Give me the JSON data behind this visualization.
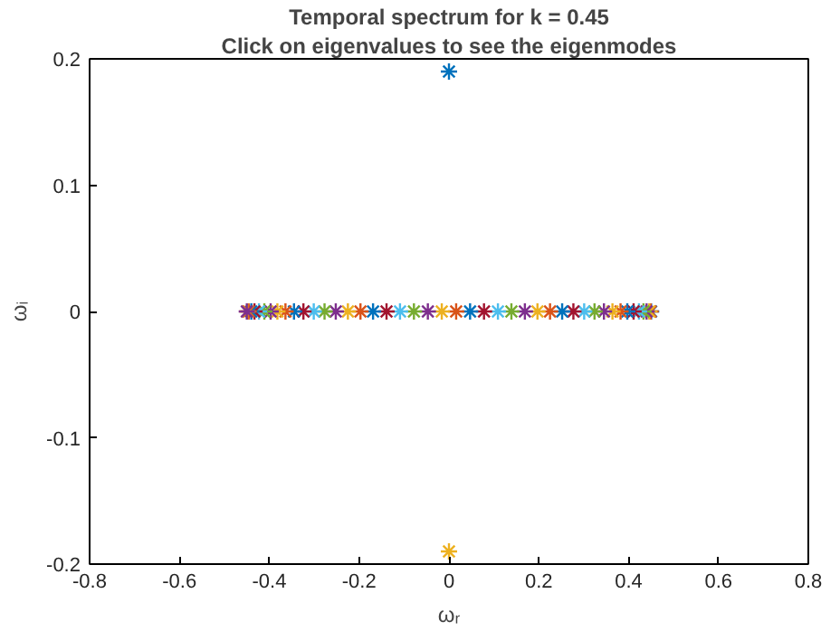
{
  "chart_data": {
    "type": "scatter",
    "title": "Temporal spectrum for k = 0.45",
    "subtitle": "Click on eigenvalues to see the eigenmodes",
    "xlabel": "ωᵣ",
    "ylabel": "ωᵢ",
    "xlim": [
      -0.8,
      0.8
    ],
    "xticks": [
      -0.8,
      -0.6,
      -0.4,
      -0.2,
      0,
      0.2,
      0.4,
      0.6,
      0.8
    ],
    "ylim": [
      -0.2,
      0.2
    ],
    "yticks": [
      -0.2,
      -0.1,
      0,
      0.1,
      0.2
    ],
    "grid": false,
    "marker": "cross",
    "series": [
      {
        "x": [
          0.45,
          0.449,
          0.446,
          0.44,
          0.433,
          0.423,
          0.411,
          0.397,
          0.382,
          0.364,
          0.345,
          0.324,
          0.301,
          0.277,
          0.252,
          0.225,
          0.197,
          0.169,
          0.139,
          0.109,
          0.078,
          0.047,
          0.016,
          -0.016,
          -0.047,
          -0.078,
          -0.109,
          -0.139,
          -0.169,
          -0.197,
          -0.225,
          -0.252,
          -0.277,
          -0.301,
          -0.324,
          -0.345,
          -0.364,
          -0.382,
          -0.397,
          -0.411,
          -0.423,
          -0.433,
          -0.44,
          -0.446,
          -0.449,
          -0.45
        ],
        "values": [
          0,
          0,
          0,
          0,
          0,
          0,
          0,
          0,
          0,
          0,
          0,
          0,
          0,
          0,
          0,
          0,
          0,
          0,
          0,
          0,
          0,
          0,
          0,
          0,
          0,
          0,
          0,
          0,
          0,
          0,
          0,
          0,
          0,
          0,
          0,
          0,
          0,
          0,
          0,
          0,
          0,
          0,
          0,
          0,
          0,
          0
        ],
        "colors": [
          "#0072bd",
          "#d95319",
          "#edb120",
          "#7e2f8e",
          "#77ac30",
          "#4dbeee",
          "#a2142f",
          "#0072bd",
          "#d95319",
          "#edb120",
          "#7e2f8e",
          "#77ac30",
          "#4dbeee",
          "#a2142f",
          "#0072bd",
          "#d95319",
          "#edb120",
          "#7e2f8e",
          "#77ac30",
          "#4dbeee",
          "#a2142f",
          "#0072bd",
          "#d95319",
          "#edb120",
          "#7e2f8e",
          "#77ac30",
          "#4dbeee",
          "#a2142f",
          "#0072bd",
          "#d95319",
          "#edb120",
          "#7e2f8e",
          "#77ac30",
          "#4dbeee",
          "#a2142f",
          "#0072bd",
          "#d95319",
          "#edb120",
          "#7e2f8e",
          "#77ac30",
          "#4dbeee",
          "#a2142f",
          "#0072bd",
          "#d95319",
          "#edb120",
          "#7e2f8e"
        ]
      },
      {
        "x": [
          0
        ],
        "values": [
          0.19
        ],
        "color": "#0072bd"
      },
      {
        "x": [
          0
        ],
        "values": [
          -0.19
        ],
        "color": "#edb120"
      }
    ]
  }
}
